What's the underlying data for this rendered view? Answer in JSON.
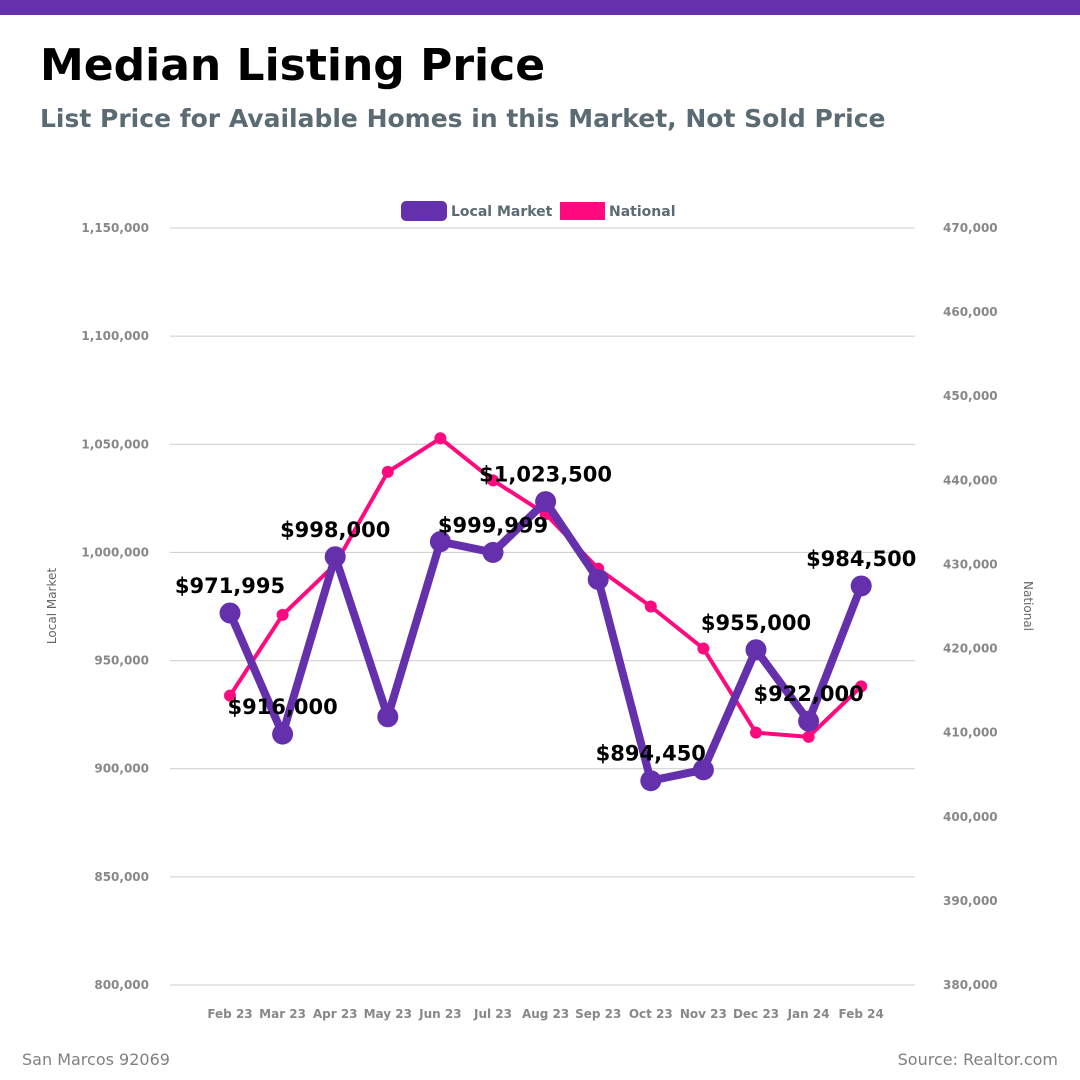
{
  "header": {
    "title": "Median Listing Price",
    "subtitle": "List Price for Available Homes in this Market, Not Sold Price"
  },
  "footer": {
    "location": "San Marcos 92069",
    "source": "Source: Realtor.com"
  },
  "colors": {
    "brand": "#6430ab",
    "local": "#6430ab",
    "national": "#ff0a7f",
    "grid": "#cccccc"
  },
  "chart_data": {
    "type": "line",
    "categories": [
      "Feb 23",
      "Mar 23",
      "Apr 23",
      "May 23",
      "Jun 23",
      "Jul 23",
      "Aug 23",
      "Sep 23",
      "Oct 23",
      "Nov 23",
      "Dec 23",
      "Jan 24",
      "Feb 24"
    ],
    "legend": {
      "position": "top-center",
      "items": [
        "Local Market",
        "National"
      ]
    },
    "y_left": {
      "title": "Local Market",
      "range": [
        800000,
        1150000
      ],
      "ticks": [
        800000,
        850000,
        900000,
        950000,
        1000000,
        1050000,
        1100000,
        1150000
      ],
      "tick_labels": [
        "800,000",
        "850,000",
        "900,000",
        "950,000",
        "1,000,000",
        "1,050,000",
        "1,100,000",
        "1,150,000"
      ]
    },
    "y_right": {
      "title": "National",
      "range": [
        380000,
        470000
      ],
      "ticks": [
        380000,
        390000,
        400000,
        410000,
        420000,
        430000,
        440000,
        450000,
        460000,
        470000
      ],
      "tick_labels": [
        "380,000",
        "390,000",
        "400,000",
        "410,000",
        "420,000",
        "430,000",
        "440,000",
        "450,000",
        "460,000",
        "470,000"
      ]
    },
    "series": [
      {
        "name": "Local Market",
        "axis": "left",
        "values": [
          971995,
          916000,
          998000,
          924000,
          1005000,
          999999,
          1023500,
          987500,
          894450,
          899500,
          955000,
          922000,
          984500
        ],
        "data_labels": [
          "$971,995",
          "$916,000",
          "$998,000",
          "",
          "",
          "$999,999",
          "$1,023,500",
          "",
          "$894,450",
          "",
          "$955,000",
          "$922,000",
          "$984,500"
        ]
      },
      {
        "name": "National",
        "axis": "right",
        "values": [
          414400,
          424000,
          430000,
          441000,
          445000,
          440000,
          436000,
          429500,
          425000,
          420000,
          410000,
          409500,
          415500
        ]
      }
    ]
  }
}
